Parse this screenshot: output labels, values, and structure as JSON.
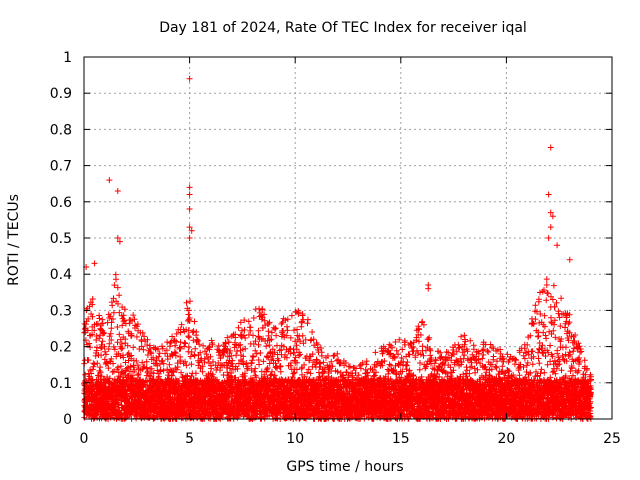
{
  "chart_data": {
    "type": "scatter",
    "title": "Day 181 of 2024, Rate Of TEC Index for receiver iqal",
    "xlabel": "GPS time / hours",
    "ylabel": "ROTI / TECUs",
    "xlim": [
      0,
      25
    ],
    "ylim": [
      0,
      1
    ],
    "x_ticks": [
      0,
      5,
      10,
      15,
      20,
      25
    ],
    "y_ticks": [
      0,
      0.1,
      0.2,
      0.3,
      0.4,
      0.5,
      0.6,
      0.7,
      0.8,
      0.9,
      1
    ],
    "x_tick_labels": [
      "0",
      "5",
      "10",
      "15",
      "20",
      "25"
    ],
    "y_tick_labels": [
      "0",
      "0.1",
      "0.2",
      "0.3",
      "0.4",
      "0.5",
      "0.6",
      "0.7",
      "0.8",
      "0.9",
      "1"
    ],
    "grid": true,
    "marker": "+",
    "color": "#ff0000",
    "series": [
      {
        "name": "ROTI",
        "envelope_x": [
          0,
          0.5,
          1,
          1.5,
          2,
          2.5,
          3,
          3.5,
          4,
          4.5,
          5,
          5.5,
          6,
          6.5,
          7,
          7.5,
          8,
          8.5,
          9,
          9.5,
          10,
          10.5,
          11,
          11.5,
          12,
          12.5,
          13,
          13.5,
          14,
          14.5,
          15,
          15.5,
          16,
          16.5,
          17,
          17.5,
          18,
          18.5,
          19,
          19.5,
          20,
          20.5,
          21,
          21.5,
          22,
          22.5,
          23,
          23.5,
          24
        ],
        "envelope_y": [
          0.3,
          0.35,
          0.25,
          0.4,
          0.3,
          0.28,
          0.22,
          0.2,
          0.22,
          0.25,
          0.35,
          0.2,
          0.22,
          0.2,
          0.25,
          0.28,
          0.3,
          0.32,
          0.25,
          0.28,
          0.3,
          0.3,
          0.22,
          0.18,
          0.18,
          0.15,
          0.15,
          0.18,
          0.2,
          0.22,
          0.22,
          0.22,
          0.28,
          0.2,
          0.18,
          0.2,
          0.25,
          0.2,
          0.22,
          0.2,
          0.18,
          0.18,
          0.22,
          0.35,
          0.4,
          0.35,
          0.3,
          0.2,
          0.12
        ],
        "outliers": [
          {
            "x": 0.1,
            "y": 0.42
          },
          {
            "x": 0.5,
            "y": 0.43
          },
          {
            "x": 1.2,
            "y": 0.66
          },
          {
            "x": 1.6,
            "y": 0.63
          },
          {
            "x": 1.6,
            "y": 0.5
          },
          {
            "x": 1.7,
            "y": 0.49
          },
          {
            "x": 5.0,
            "y": 0.94
          },
          {
            "x": 5.0,
            "y": 0.64
          },
          {
            "x": 5.0,
            "y": 0.62
          },
          {
            "x": 5.0,
            "y": 0.58
          },
          {
            "x": 5.0,
            "y": 0.53
          },
          {
            "x": 5.1,
            "y": 0.52
          },
          {
            "x": 5.0,
            "y": 0.5
          },
          {
            "x": 16.3,
            "y": 0.37
          },
          {
            "x": 16.3,
            "y": 0.36
          },
          {
            "x": 22.1,
            "y": 0.75
          },
          {
            "x": 22.0,
            "y": 0.62
          },
          {
            "x": 22.1,
            "y": 0.57
          },
          {
            "x": 22.2,
            "y": 0.56
          },
          {
            "x": 22.1,
            "y": 0.53
          },
          {
            "x": 22.0,
            "y": 0.5
          },
          {
            "x": 22.4,
            "y": 0.48
          },
          {
            "x": 23.0,
            "y": 0.44
          }
        ]
      }
    ]
  }
}
